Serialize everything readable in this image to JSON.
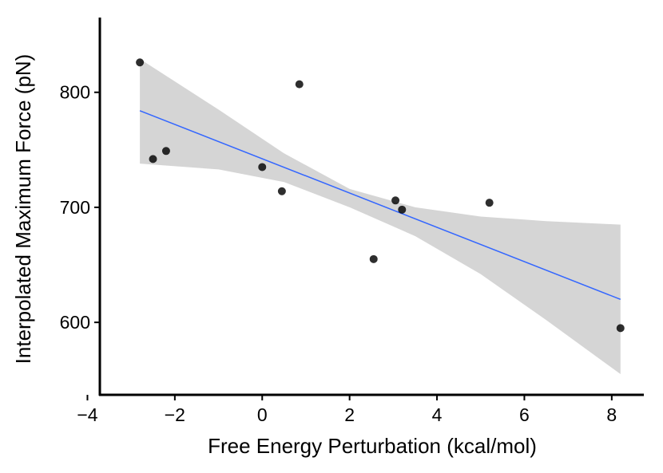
{
  "chart_data": {
    "type": "scatter",
    "xlabel": "Free Energy Perturbation (kcal/mol)",
    "ylabel": "Interpolated Maximum Force (pN)",
    "xlim": [
      -4.1,
      9.1
    ],
    "ylim": [
      537,
      865
    ],
    "x_ticks": [
      -4,
      -2,
      0,
      2,
      4,
      6,
      8
    ],
    "x_tick_labels": [
      "−4",
      "−2",
      "0",
      "2",
      "4",
      "6",
      "8"
    ],
    "y_ticks": [
      600,
      700,
      800
    ],
    "y_tick_labels": [
      "600",
      "700",
      "800"
    ],
    "points": [
      {
        "x": -2.8,
        "y": 826
      },
      {
        "x": -2.5,
        "y": 742
      },
      {
        "x": -2.2,
        "y": 749
      },
      {
        "x": 0.0,
        "y": 735
      },
      {
        "x": 0.45,
        "y": 714
      },
      {
        "x": 0.85,
        "y": 807
      },
      {
        "x": 2.55,
        "y": 655
      },
      {
        "x": 3.05,
        "y": 706
      },
      {
        "x": 3.2,
        "y": 698
      },
      {
        "x": 5.2,
        "y": 704
      },
      {
        "x": 8.2,
        "y": 595
      }
    ],
    "fit": {
      "method": "linear regression",
      "x_range": [
        -2.8,
        8.2
      ],
      "y_at_range": [
        784,
        620
      ],
      "ci_upper": [
        {
          "x": -2.8,
          "y": 829
        },
        {
          "x": -1.0,
          "y": 785
        },
        {
          "x": 0.5,
          "y": 747
        },
        {
          "x": 2.0,
          "y": 716
        },
        {
          "x": 3.5,
          "y": 700
        },
        {
          "x": 5.0,
          "y": 692
        },
        {
          "x": 6.5,
          "y": 688
        },
        {
          "x": 8.2,
          "y": 685
        }
      ],
      "ci_lower": [
        {
          "x": -2.8,
          "y": 738
        },
        {
          "x": -1.0,
          "y": 733
        },
        {
          "x": 0.5,
          "y": 722
        },
        {
          "x": 2.0,
          "y": 700
        },
        {
          "x": 3.5,
          "y": 675
        },
        {
          "x": 5.0,
          "y": 642
        },
        {
          "x": 6.5,
          "y": 602
        },
        {
          "x": 8.2,
          "y": 555
        }
      ]
    },
    "colors": {
      "points": "#000000",
      "fit_line": "#3366ff",
      "ci_band": "#d3d3d3",
      "axes": "#000000"
    },
    "grid": false
  }
}
